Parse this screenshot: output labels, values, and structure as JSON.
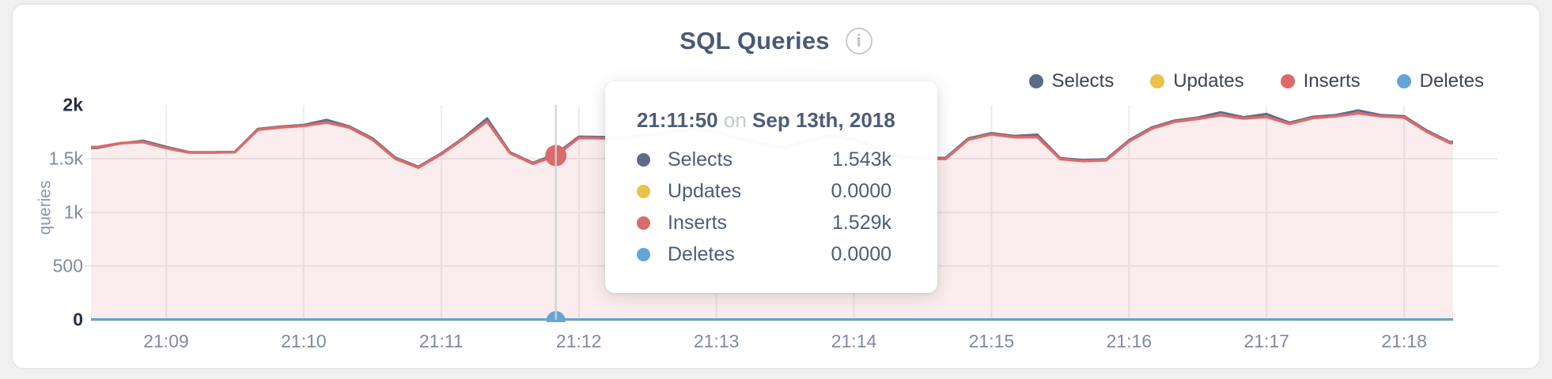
{
  "header": {
    "title": "SQL Queries",
    "info_icon_glyph": "i"
  },
  "colors": {
    "selects": "#5b6c88",
    "updates": "#e9c24a",
    "inserts": "#dd6a6a",
    "deletes": "#64a5d8",
    "area_fill": "rgba(221,106,106,0.12)",
    "gridline": "#ececee",
    "crosshair": "#d2d3d6",
    "axis_text": "#7d8ba1"
  },
  "legend": [
    {
      "label": "Selects",
      "color": "#5b6c88"
    },
    {
      "label": "Updates",
      "color": "#e9c24a"
    },
    {
      "label": "Inserts",
      "color": "#dd6a6a"
    },
    {
      "label": "Deletes",
      "color": "#64a5d8"
    }
  ],
  "tooltip": {
    "time": "21:11:50",
    "on_word": "on",
    "date": "Sep 13th, 2018",
    "rows": [
      {
        "label": "Selects",
        "value": "1.543k",
        "color": "#5b6c88"
      },
      {
        "label": "Updates",
        "value": "0.0000",
        "color": "#e9c24a"
      },
      {
        "label": "Inserts",
        "value": "1.529k",
        "color": "#dd6a6a"
      },
      {
        "label": "Deletes",
        "value": "0.0000",
        "color": "#64a5d8"
      }
    ]
  },
  "chart_data": {
    "type": "area",
    "title": "SQL Queries",
    "ylabel": "queries",
    "ylim": [
      0,
      2000
    ],
    "yticks": [
      {
        "label": "2k",
        "value": 2000,
        "emphasis": true
      },
      {
        "label": "1.5k",
        "value": 1500,
        "emphasis": false
      },
      {
        "label": "1k",
        "value": 1000,
        "emphasis": false
      },
      {
        "label": "500",
        "value": 500,
        "emphasis": false
      },
      {
        "label": "0",
        "value": 0,
        "emphasis": true
      }
    ],
    "xticks": [
      "21:09",
      "21:10",
      "21:11",
      "21:12",
      "21:13",
      "21:14",
      "21:15",
      "21:16",
      "21:17",
      "21:18"
    ],
    "x_start_time": "21:08:30",
    "x_step_seconds": 10,
    "grid": true,
    "legend_position": "top-right",
    "series": [
      {
        "name": "Selects",
        "color": "#5b6c88",
        "values": [
          1600,
          1642,
          1668,
          1610,
          1562,
          1560,
          1565,
          1778,
          1800,
          1815,
          1862,
          1800,
          1690,
          1510,
          1425,
          1550,
          1700,
          1875,
          1560,
          1462,
          1543,
          1705,
          1702,
          1696,
          1722,
          1752,
          1784,
          1756,
          1696,
          1642,
          1602,
          1672,
          1716,
          1682,
          1612,
          1520,
          1507,
          1508,
          1690,
          1738,
          1712,
          1724,
          1505,
          1488,
          1494,
          1672,
          1792,
          1856,
          1882,
          1932,
          1886,
          1916,
          1836,
          1890,
          1906,
          1950,
          1906,
          1896,
          1762,
          1656
        ]
      },
      {
        "name": "Inserts",
        "color": "#dd6a6a",
        "area": true,
        "values": [
          1608,
          1645,
          1655,
          1600,
          1558,
          1558,
          1562,
          1770,
          1792,
          1806,
          1838,
          1790,
          1678,
          1500,
          1418,
          1542,
          1692,
          1848,
          1552,
          1454,
          1529,
          1694,
          1691,
          1684,
          1712,
          1742,
          1773,
          1745,
          1685,
          1632,
          1592,
          1662,
          1705,
          1671,
          1602,
          1511,
          1498,
          1499,
          1679,
          1727,
          1701,
          1702,
          1497,
          1479,
          1485,
          1661,
          1781,
          1845,
          1871,
          1906,
          1875,
          1890,
          1825,
          1879,
          1895,
          1924,
          1895,
          1885,
          1751,
          1647
        ]
      },
      {
        "name": "Updates",
        "color": "#e9c24a",
        "constant": 0
      },
      {
        "name": "Deletes",
        "color": "#64a5d8",
        "constant": 0
      }
    ],
    "highlight": {
      "index": 20,
      "time": "21:11:50",
      "date": "Sep 13th, 2018",
      "selects": 1543,
      "updates": 0,
      "inserts": 1529,
      "deletes": 0
    }
  }
}
